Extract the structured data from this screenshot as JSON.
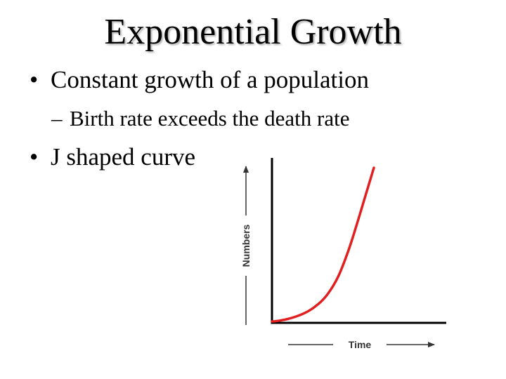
{
  "title": "Exponential Growth",
  "bullets": [
    {
      "marker": "•",
      "text": "Constant growth of a population"
    },
    {
      "marker": "–",
      "text": "Birth rate exceeds the death rate"
    },
    {
      "marker": "•",
      "text": "J shaped curve"
    }
  ],
  "chart_data": {
    "type": "line",
    "title": "",
    "xlabel": "Time",
    "ylabel": "Numbers",
    "series": [
      {
        "color": "#e02020",
        "x": [
          0,
          0.05,
          0.1,
          0.15,
          0.2,
          0.25,
          0.3,
          0.35,
          0.4,
          0.45,
          0.5,
          0.55,
          0.6,
          0.65,
          0.7,
          0.75,
          0.8,
          0.85,
          0.9,
          0.95,
          1.0
        ],
        "y": [
          0.0,
          0.003,
          0.008,
          0.015,
          0.024,
          0.035,
          0.048,
          0.064,
          0.085,
          0.11,
          0.14,
          0.18,
          0.23,
          0.29,
          0.37,
          0.46,
          0.56,
          0.67,
          0.78,
          0.89,
          1.0
        ]
      }
    ],
    "axis_color": "#000000",
    "grid": false,
    "legend": "none"
  }
}
